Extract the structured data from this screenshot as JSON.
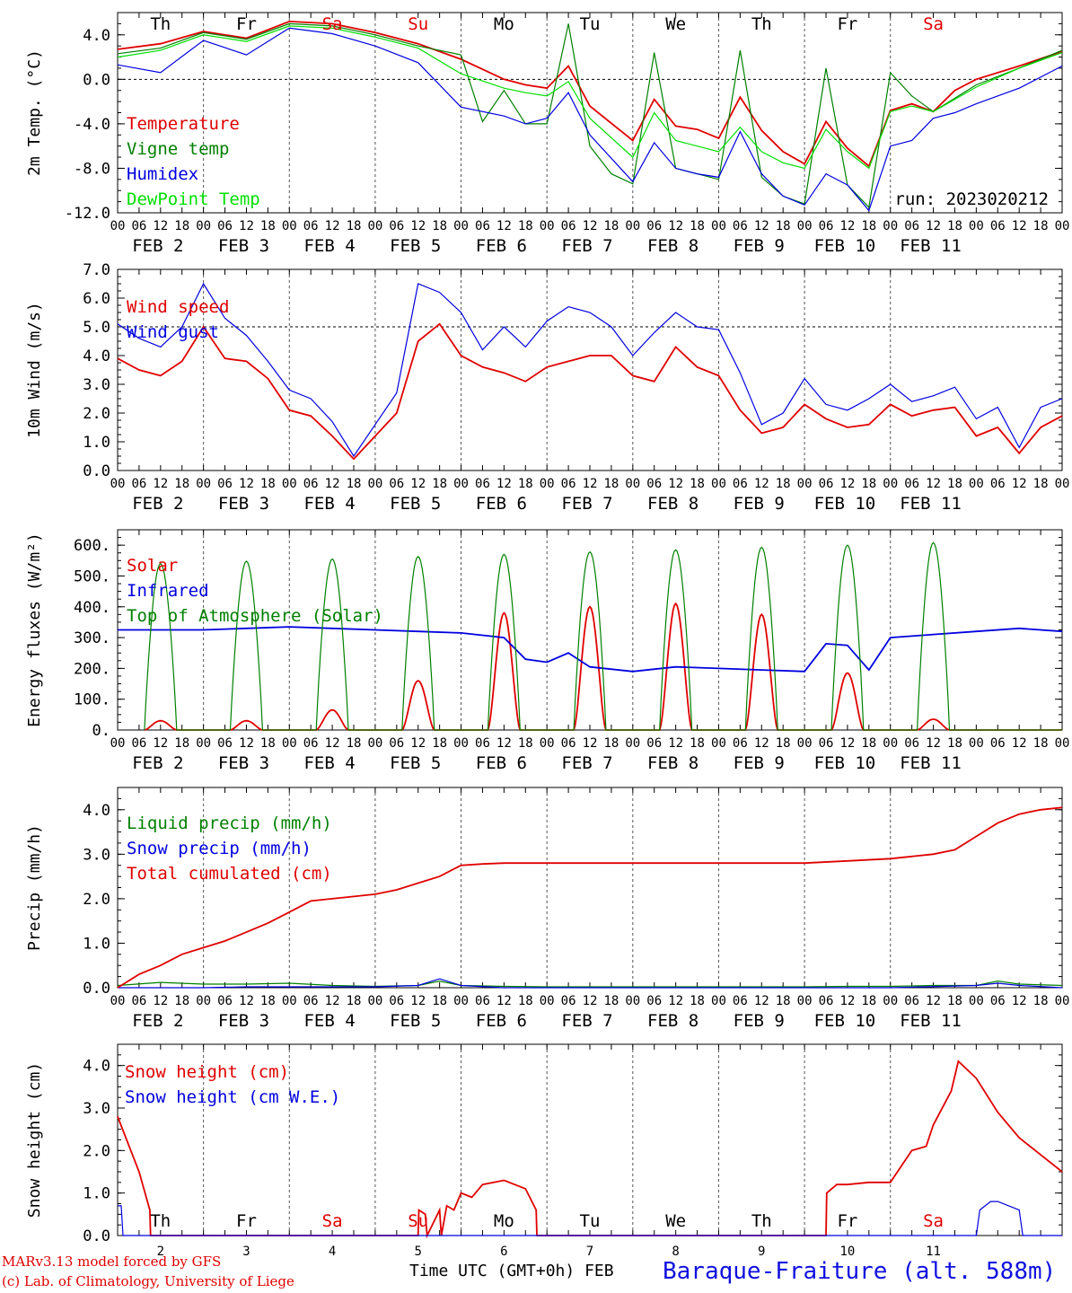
{
  "footer": {
    "model_line": "MARv3.13 model forced by GFS",
    "credit_line": "(c) Lab. of Climatology, University of Liege",
    "time_label": "Time UTC (GMT+0h) FEB",
    "station": "Baraque-Fraiture (alt. 588m)"
  },
  "x_axis": {
    "hour_ticks": [
      "00",
      "06",
      "12",
      "18"
    ],
    "date_labels": [
      "FEB  2",
      "FEB  3",
      "FEB  4",
      "FEB  5",
      "FEB  6",
      "FEB  7",
      "FEB  8",
      "FEB  9",
      "FEB 10",
      "FEB 11"
    ],
    "bottom_day_numbers": [
      "2",
      "3",
      "4",
      "5",
      "6",
      "7",
      "8",
      "9",
      "10",
      "11"
    ],
    "weekday_labels": [
      {
        "label": "Th",
        "color": "#000000"
      },
      {
        "label": "Fr",
        "color": "#000000"
      },
      {
        "label": "Sa",
        "color": "#e00000"
      },
      {
        "label": "Su",
        "color": "#e00000"
      },
      {
        "label": "Mo",
        "color": "#000000"
      },
      {
        "label": "Tu",
        "color": "#000000"
      },
      {
        "label": "We",
        "color": "#000000"
      },
      {
        "label": "Th",
        "color": "#000000"
      },
      {
        "label": "Fr",
        "color": "#000000"
      },
      {
        "label": "Sa",
        "color": "#e00000"
      }
    ]
  },
  "chart_data": [
    {
      "type": "line",
      "ylabel": "2m Temp. (°C)",
      "ylim": [
        -12,
        6
      ],
      "yticks": [
        "4.0",
        "0.0",
        "-4.0",
        "-8.0",
        "-12.0"
      ],
      "ytick_values": [
        4,
        0,
        -4,
        -8,
        -12
      ],
      "annotation": "run: 2023020212",
      "x_unit": "hours since FEB 2 00 UTC",
      "series": [
        {
          "name": "Temperature",
          "color": "#e00000",
          "x": [
            0,
            12,
            24,
            36,
            48,
            60,
            72,
            84,
            96,
            108,
            114,
            120,
            126,
            132,
            144,
            150,
            156,
            162,
            168,
            174,
            180,
            186,
            192,
            198,
            204,
            210,
            216,
            222,
            228,
            234,
            240,
            252,
            264
          ],
          "y": [
            2.7,
            3.2,
            4.3,
            3.7,
            5.2,
            5.0,
            4.2,
            3.2,
            1.8,
            0.0,
            -0.5,
            -0.8,
            1.2,
            -2.4,
            -5.5,
            -1.8,
            -4.2,
            -4.5,
            -5.3,
            -1.6,
            -4.6,
            -6.5,
            -7.6,
            -3.8,
            -6.2,
            -7.8,
            -2.8,
            -2.2,
            -2.9,
            -1.0,
            0.0,
            1.2,
            2.5
          ]
        },
        {
          "name": "Vigne temp",
          "color": "#008000",
          "x": [
            0,
            12,
            24,
            36,
            48,
            60,
            72,
            84,
            96,
            102,
            108,
            114,
            120,
            126,
            132,
            138,
            144,
            150,
            156,
            162,
            168,
            174,
            180,
            186,
            192,
            198,
            204,
            210,
            216,
            222,
            228,
            240,
            252,
            264
          ],
          "y": [
            2.3,
            2.8,
            4.2,
            3.6,
            5.0,
            4.8,
            4.0,
            3.0,
            2.2,
            -3.8,
            -1.0,
            -4.0,
            -4.0,
            5.0,
            -6.0,
            -8.5,
            -9.4,
            2.4,
            -8.0,
            -8.5,
            -9.0,
            2.6,
            -8.8,
            -10.5,
            -11.2,
            1.0,
            -9.5,
            -11.5,
            0.6,
            -1.5,
            -2.9,
            -0.5,
            1.0,
            2.6
          ]
        },
        {
          "name": "Humidex",
          "color": "#0000e0",
          "x": [
            0,
            12,
            24,
            36,
            48,
            60,
            72,
            84,
            96,
            108,
            114,
            120,
            126,
            132,
            144,
            150,
            156,
            162,
            168,
            174,
            180,
            186,
            192,
            198,
            204,
            210,
            216,
            222,
            228,
            234,
            240,
            252,
            264
          ],
          "y": [
            1.3,
            0.6,
            3.5,
            2.2,
            4.6,
            4.1,
            3.0,
            1.5,
            -2.5,
            -3.3,
            -4.0,
            -3.5,
            -1.2,
            -5.0,
            -9.2,
            -5.7,
            -8.0,
            -8.5,
            -8.8,
            -4.7,
            -8.5,
            -10.5,
            -11.3,
            -8.5,
            -9.5,
            -11.8,
            -6.0,
            -5.5,
            -3.5,
            -3.0,
            -2.2,
            -0.8,
            1.2
          ]
        },
        {
          "name": "DewPoint Temp",
          "color": "#00e000",
          "x": [
            0,
            12,
            24,
            36,
            48,
            60,
            72,
            84,
            96,
            108,
            114,
            120,
            126,
            132,
            144,
            150,
            156,
            162,
            168,
            174,
            180,
            186,
            192,
            198,
            204,
            210,
            216,
            222,
            228,
            240,
            252,
            264
          ],
          "y": [
            2.0,
            2.6,
            4.0,
            3.4,
            4.8,
            4.6,
            3.8,
            2.8,
            0.5,
            -0.8,
            -1.2,
            -1.5,
            -0.2,
            -3.5,
            -7.0,
            -3.0,
            -5.5,
            -6.0,
            -6.5,
            -4.3,
            -6.5,
            -7.5,
            -8.0,
            -4.5,
            -6.5,
            -8.0,
            -2.9,
            -2.4,
            -2.9,
            -0.7,
            1.0,
            2.4
          ]
        }
      ],
      "legend_placement": "left"
    },
    {
      "type": "line",
      "ylabel": "10m Wind (m/s)",
      "ylim": [
        0,
        7
      ],
      "yticks": [
        "7.0",
        "6.0",
        "5.0",
        "4.0",
        "3.0",
        "2.0",
        "1.0",
        "0.0"
      ],
      "ytick_values": [
        7,
        6,
        5,
        4,
        3,
        2,
        1,
        0
      ],
      "reference_line": 5,
      "x_unit": "hours since FEB 2 00 UTC",
      "series": [
        {
          "name": "Wind speed",
          "color": "#e00000",
          "x": [
            0,
            6,
            12,
            18,
            24,
            30,
            36,
            42,
            48,
            54,
            60,
            66,
            72,
            78,
            84,
            90,
            96,
            102,
            108,
            114,
            120,
            126,
            132,
            138,
            144,
            150,
            156,
            162,
            168,
            174,
            180,
            186,
            192,
            198,
            204,
            210,
            216,
            222,
            228,
            234,
            240,
            246,
            252,
            258,
            264
          ],
          "y": [
            3.9,
            3.5,
            3.3,
            3.8,
            5.0,
            3.9,
            3.8,
            3.2,
            2.1,
            1.9,
            1.2,
            0.4,
            1.2,
            2.0,
            4.5,
            5.1,
            4.0,
            3.6,
            3.4,
            3.1,
            3.6,
            3.8,
            4.0,
            4.0,
            3.3,
            3.1,
            4.3,
            3.6,
            3.3,
            2.1,
            1.3,
            1.5,
            2.3,
            1.8,
            1.5,
            1.6,
            2.3,
            1.9,
            2.1,
            2.2,
            1.2,
            1.5,
            0.6,
            1.5,
            1.9
          ]
        },
        {
          "name": "Wind gust",
          "color": "#0000e0",
          "x": [
            0,
            6,
            12,
            18,
            24,
            30,
            36,
            42,
            48,
            54,
            60,
            66,
            72,
            78,
            84,
            90,
            96,
            102,
            108,
            114,
            120,
            126,
            132,
            138,
            144,
            150,
            156,
            162,
            168,
            174,
            180,
            186,
            192,
            198,
            204,
            210,
            216,
            222,
            228,
            234,
            240,
            246,
            252,
            258,
            264
          ],
          "y": [
            5.1,
            4.6,
            4.3,
            5.0,
            6.5,
            5.3,
            4.7,
            3.8,
            2.8,
            2.5,
            1.7,
            0.5,
            1.6,
            2.7,
            6.5,
            6.2,
            5.5,
            4.2,
            5.0,
            4.3,
            5.2,
            5.7,
            5.5,
            5.0,
            4.0,
            4.8,
            5.5,
            5.0,
            4.9,
            3.4,
            1.6,
            2.0,
            3.2,
            2.3,
            2.1,
            2.5,
            3.0,
            2.4,
            2.6,
            2.9,
            1.8,
            2.2,
            0.8,
            2.2,
            2.5
          ]
        }
      ],
      "legend_placement": "left"
    },
    {
      "type": "line",
      "ylabel": "Energy fluxes (W/m²)",
      "ylim": [
        0,
        650
      ],
      "yticks": [
        "600.",
        "500.",
        "400.",
        "300.",
        "200.",
        "100.",
        "0."
      ],
      "ytick_values": [
        600,
        500,
        400,
        300,
        200,
        100,
        0
      ],
      "x_unit": "hours since FEB 2 00 UTC",
      "series": [
        {
          "name": "Solar",
          "color": "#e00000",
          "peaks": [
            30,
            30,
            65,
            160,
            380,
            400,
            410,
            375,
            185,
            35
          ]
        },
        {
          "name": "Infrared",
          "color": "#0000e0",
          "x": [
            0,
            12,
            24,
            36,
            48,
            60,
            72,
            84,
            96,
            108,
            114,
            120,
            126,
            132,
            144,
            156,
            168,
            180,
            192,
            198,
            204,
            210,
            216,
            222,
            228,
            240,
            252,
            264
          ],
          "y": [
            325,
            325,
            325,
            330,
            335,
            330,
            325,
            320,
            315,
            300,
            230,
            220,
            250,
            205,
            190,
            205,
            200,
            195,
            190,
            280,
            275,
            195,
            300,
            305,
            310,
            320,
            330,
            320
          ]
        },
        {
          "name": "Top of Atmosphere (Solar)",
          "color": "#008000",
          "peaks": [
            540,
            548,
            555,
            563,
            570,
            578,
            585,
            593,
            600,
            608
          ]
        }
      ],
      "legend_placement": "left"
    },
    {
      "type": "line",
      "ylabel": "Precip (mm/h)",
      "ylim": [
        0,
        4.5
      ],
      "yticks": [
        "4.0",
        "3.0",
        "2.0",
        "1.0",
        "0.0"
      ],
      "ytick_values": [
        4,
        3,
        2,
        1,
        0
      ],
      "x_unit": "hours since FEB 2 00 UTC",
      "series": [
        {
          "name": "Liquid precip (mm/h)",
          "color": "#008000",
          "x": [
            0,
            12,
            24,
            36,
            48,
            60,
            72,
            84,
            90,
            96,
            108,
            120,
            144,
            168,
            192,
            204,
            216,
            228,
            240,
            246,
            252,
            264
          ],
          "y": [
            0.05,
            0.12,
            0.08,
            0.08,
            0.1,
            0.05,
            0.03,
            0.05,
            0.15,
            0.05,
            0.03,
            0.02,
            0.02,
            0.02,
            0.02,
            0.03,
            0.03,
            0.05,
            0.05,
            0.15,
            0.08,
            0.05
          ]
        },
        {
          "name": "Snow precip (mm/h)",
          "color": "#0000e0",
          "x": [
            0,
            12,
            24,
            36,
            48,
            60,
            72,
            84,
            90,
            96,
            108,
            120,
            144,
            168,
            192,
            216,
            240,
            246,
            252,
            264
          ],
          "y": [
            0.0,
            0.0,
            0.0,
            0.02,
            0.02,
            0.02,
            0.02,
            0.05,
            0.2,
            0.05,
            0.0,
            0.0,
            0.0,
            0.0,
            0.0,
            0.0,
            0.05,
            0.1,
            0.05,
            0.0
          ]
        },
        {
          "name": "Total cumulated (cm)",
          "color": "#e00000",
          "x": [
            0,
            6,
            12,
            18,
            24,
            30,
            36,
            42,
            48,
            54,
            60,
            66,
            72,
            78,
            84,
            90,
            96,
            102,
            108,
            120,
            144,
            168,
            192,
            204,
            216,
            222,
            228,
            234,
            240,
            246,
            252,
            258,
            264
          ],
          "y": [
            0.0,
            0.3,
            0.5,
            0.75,
            0.9,
            1.05,
            1.25,
            1.45,
            1.7,
            1.95,
            2.0,
            2.05,
            2.1,
            2.2,
            2.35,
            2.5,
            2.75,
            2.78,
            2.8,
            2.8,
            2.8,
            2.8,
            2.8,
            2.85,
            2.9,
            2.95,
            3.0,
            3.1,
            3.4,
            3.7,
            3.9,
            4.0,
            4.05
          ]
        }
      ],
      "legend_placement": "left"
    },
    {
      "type": "line",
      "ylabel": "Snow height (cm)",
      "ylim": [
        0,
        4.5
      ],
      "yticks": [
        "4.0",
        "3.0",
        "2.0",
        "1.0",
        "0.0"
      ],
      "ytick_values": [
        4,
        3,
        2,
        1,
        0
      ],
      "x_unit": "hours since FEB 2 00 UTC",
      "series": [
        {
          "name": "Snow height (cm)",
          "color": "#e00000",
          "x": [
            0,
            6,
            9,
            9.2,
            84,
            84.2,
            86,
            86.5,
            90,
            90.5,
            92,
            94,
            96,
            99,
            102,
            108,
            114,
            117,
            117.2,
            198,
            198.2,
            201,
            204,
            210,
            216,
            222,
            226,
            228,
            233,
            235,
            240,
            246,
            252,
            258,
            264
          ],
          "y": [
            2.8,
            1.5,
            0.6,
            0.0,
            0.0,
            0.6,
            0.5,
            0.0,
            0.6,
            0.0,
            0.7,
            0.6,
            1.0,
            0.9,
            1.2,
            1.3,
            1.1,
            0.6,
            0.0,
            0.0,
            1.0,
            1.2,
            1.2,
            1.25,
            1.25,
            2.0,
            2.1,
            2.6,
            3.4,
            4.1,
            3.7,
            2.9,
            2.3,
            1.9,
            1.5
          ]
        },
        {
          "name": "Snow height (cm W.E.)",
          "color": "#0000e0",
          "x": [
            0,
            1,
            1.5,
            240,
            241,
            244,
            246,
            252,
            253,
            264
          ],
          "y": [
            0.7,
            0.7,
            0.0,
            0.0,
            0.6,
            0.8,
            0.8,
            0.6,
            0.0,
            0.0
          ]
        }
      ],
      "legend_placement": "left"
    }
  ]
}
